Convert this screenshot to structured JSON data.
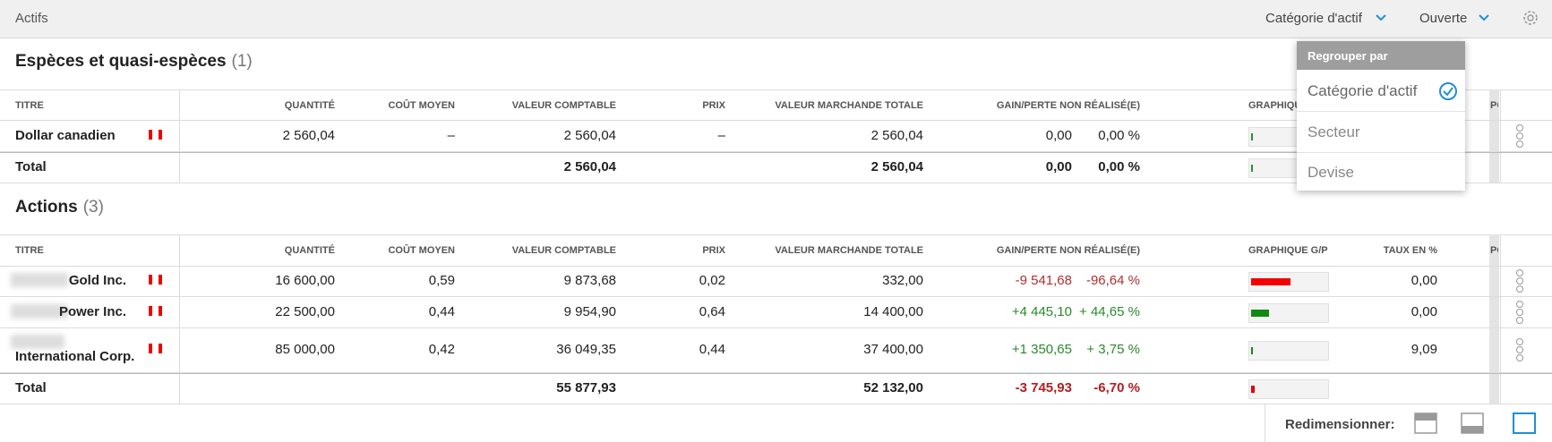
{
  "header": {
    "title": "Actifs",
    "group_by": "Catégorie d'actif",
    "status": "Ouverte"
  },
  "dropdown": {
    "title": "Regrouper par",
    "options": [
      "Catégorie d'actif",
      "Secteur",
      "Devise"
    ]
  },
  "columns": {
    "name": "TITRE",
    "qty": "QUANTITÉ",
    "cost": "COÛT MOYEN",
    "book": "VALEUR COMPTABLE",
    "price": "PRIX",
    "market": "VALEUR MARCHANDE TOTALE",
    "gain": "GAIN/PERTE NON RÉALISÉ(E)",
    "chart": "GRAPHIQUE G/P",
    "rate": "TAUX EN %",
    "po": "PO"
  },
  "sections": [
    {
      "title": "Espèces et quasi-espèces",
      "count": "(1)",
      "rows": [
        {
          "name": "Dollar canadien",
          "qty": "2 560,04",
          "cost": "–",
          "book": "2 560,04",
          "price": "–",
          "market": "2 560,04",
          "gain": "0,00",
          "gain_pct": "0,00 %"
        }
      ],
      "total": {
        "label": "Total",
        "book": "2 560,04",
        "market": "2 560,04",
        "gain": "0,00",
        "gain_pct": "0,00 %"
      }
    },
    {
      "title": "Actions",
      "count": "(3)",
      "rows": [
        {
          "name": "Gold Inc.",
          "qty": "16 600,00",
          "cost": "0,59",
          "book": "9 873,68",
          "price": "0,02",
          "market": "332,00",
          "gain": "-9 541,68",
          "gain_pct": "-96,64 %",
          "rate": "0,00"
        },
        {
          "name": "Power Inc.",
          "qty": "22 500,00",
          "cost": "0,44",
          "book": "9 954,90",
          "price": "0,64",
          "market": "14 400,00",
          "gain": "+4 445,10",
          "gain_pct": "+ 44,65 %",
          "rate": "0,00"
        },
        {
          "name": "International Corp.",
          "qty": "85 000,00",
          "cost": "0,42",
          "book": "36 049,35",
          "price": "0,44",
          "market": "37 400,00",
          "gain": "+1 350,65",
          "gain_pct": "+ 3,75 %",
          "rate": "9,09"
        }
      ],
      "total": {
        "label": "Total",
        "book": "55 877,93",
        "market": "52 132,00",
        "gain": "-3 745,93",
        "gain_pct": "-6,70 %"
      }
    }
  ],
  "footer": {
    "resize_label": "Redimensionner:"
  }
}
